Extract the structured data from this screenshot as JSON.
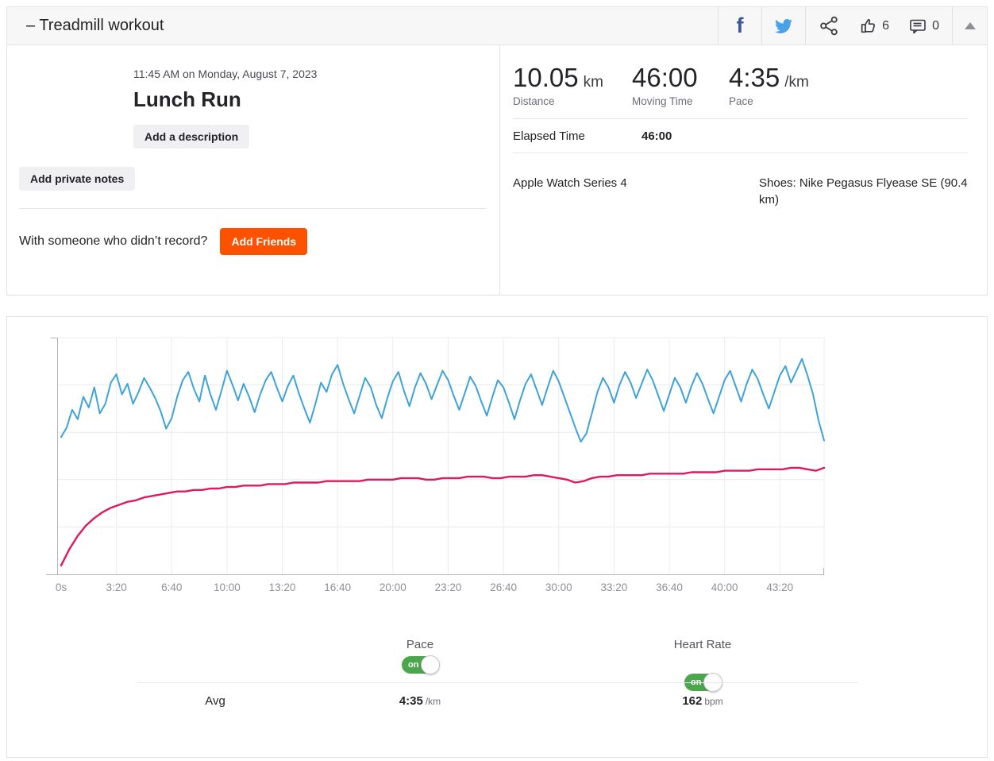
{
  "header": {
    "title": "– Treadmill workout",
    "facebook_label": "f",
    "like_count": "6",
    "comment_count": "0"
  },
  "overview": {
    "date": "11:45 AM on Monday, August 7, 2023",
    "activity_title": "Lunch Run",
    "add_description_label": "Add a description",
    "add_private_notes_label": "Add private notes",
    "friends_prompt": "With someone who didn’t record?",
    "add_friends_label": "Add Friends"
  },
  "stats": {
    "primary": [
      {
        "value": "10.05",
        "unit": "km",
        "label": "Distance"
      },
      {
        "value": "46:00",
        "unit": "",
        "label": "Moving Time"
      },
      {
        "value": "4:35",
        "unit": "/km",
        "label": "Pace"
      }
    ],
    "elapsed_time_label": "Elapsed Time",
    "elapsed_time_value": "46:00",
    "device": "Apple Watch Series 4",
    "shoes": "Shoes: Nike Pegasus Flyease SE (90.4 km)"
  },
  "chart_data": {
    "type": "line",
    "x_unit": "seconds",
    "duration_seconds": 2760,
    "x_tick_seconds": [
      0,
      200,
      400,
      600,
      800,
      1000,
      1200,
      1400,
      1600,
      1800,
      2000,
      2200,
      2400,
      2600
    ],
    "x_tick_labels": [
      "0s",
      "3:20",
      "6:40",
      "10:00",
      "13:20",
      "16:40",
      "20:00",
      "23:20",
      "26:40",
      "30:00",
      "33:20",
      "36:40",
      "40:00",
      "43:20"
    ],
    "grid": {
      "horizontal_bands": 5,
      "vertical_per_tick": true,
      "legend_position": "below"
    },
    "series": [
      {
        "name": "Pace",
        "color": "#3ea3db",
        "unit": "sec/km",
        "average_display": "4:35 /km",
        "sample_interval_seconds": 20,
        "axis": {
          "top_value": 220,
          "bottom_value": 420
        },
        "values": [
          304,
          296,
          281,
          289,
          270,
          279,
          262,
          284,
          276,
          258,
          251,
          268,
          259,
          276,
          266,
          254,
          262,
          271,
          282,
          297,
          288,
          270,
          256,
          249,
          263,
          274,
          252,
          268,
          281,
          265,
          248,
          260,
          273,
          259,
          270,
          283,
          268,
          256,
          249,
          262,
          274,
          261,
          252,
          267,
          280,
          292,
          276,
          258,
          266,
          251,
          243,
          259,
          272,
          284,
          269,
          254,
          262,
          277,
          288,
          271,
          257,
          249,
          265,
          278,
          262,
          250,
          259,
          272,
          260,
          248,
          256,
          269,
          281,
          267,
          253,
          261,
          274,
          286,
          270,
          256,
          262,
          275,
          289,
          273,
          259,
          251,
          264,
          277,
          262,
          248,
          257,
          270,
          283,
          296,
          308,
          301,
          284,
          266,
          254,
          262,
          275,
          260,
          249,
          258,
          271,
          259,
          247,
          256,
          269,
          282,
          268,
          254,
          262,
          275,
          261,
          250,
          259,
          272,
          284,
          270,
          256,
          248,
          261,
          274,
          259,
          247,
          255,
          268,
          280,
          266,
          252,
          244,
          258,
          248,
          238,
          252,
          268,
          290,
          307
        ]
      },
      {
        "name": "Heart Rate",
        "color": "#e0185c",
        "unit": "bpm",
        "average_display": "162 bpm",
        "sample_interval_seconds": 30,
        "axis": {
          "top_value": 255,
          "bottom_value": 95
        },
        "values": [
          101,
          112,
          121,
          128,
          133,
          137,
          140,
          142,
          144,
          145,
          147,
          148,
          149,
          150,
          151,
          151,
          152,
          152,
          153,
          153,
          154,
          154,
          155,
          155,
          155,
          156,
          156,
          156,
          157,
          157,
          157,
          157,
          158,
          158,
          158,
          158,
          158,
          159,
          159,
          159,
          159,
          160,
          160,
          160,
          159,
          159,
          160,
          160,
          160,
          161,
          161,
          161,
          160,
          160,
          161,
          161,
          161,
          162,
          162,
          161,
          160,
          159,
          157,
          158,
          160,
          161,
          161,
          162,
          162,
          162,
          162,
          163,
          163,
          163,
          163,
          163,
          164,
          164,
          164,
          164,
          165,
          165,
          165,
          165,
          166,
          166,
          166,
          166,
          167,
          167,
          166,
          165,
          167
        ]
      }
    ]
  },
  "legend": {
    "pace_label": "Pace",
    "heart_rate_label": "Heart Rate",
    "toggle_on_label": "on",
    "avg_label": "Avg",
    "avg_pace_value": "4:35",
    "avg_pace_unit": "/km",
    "avg_hr_value": "162",
    "avg_hr_unit": "bpm"
  },
  "colors": {
    "accent_orange": "#fc5200",
    "pace_blue": "#3ea3db",
    "heart_rate_red": "#e0185c",
    "toggle_green": "#4ca64c",
    "facebook_blue": "#39579a",
    "twitter_blue": "#4aa1eb",
    "topbar_bg": "#f7f7f8",
    "panel_border": "#e2e2e8"
  }
}
